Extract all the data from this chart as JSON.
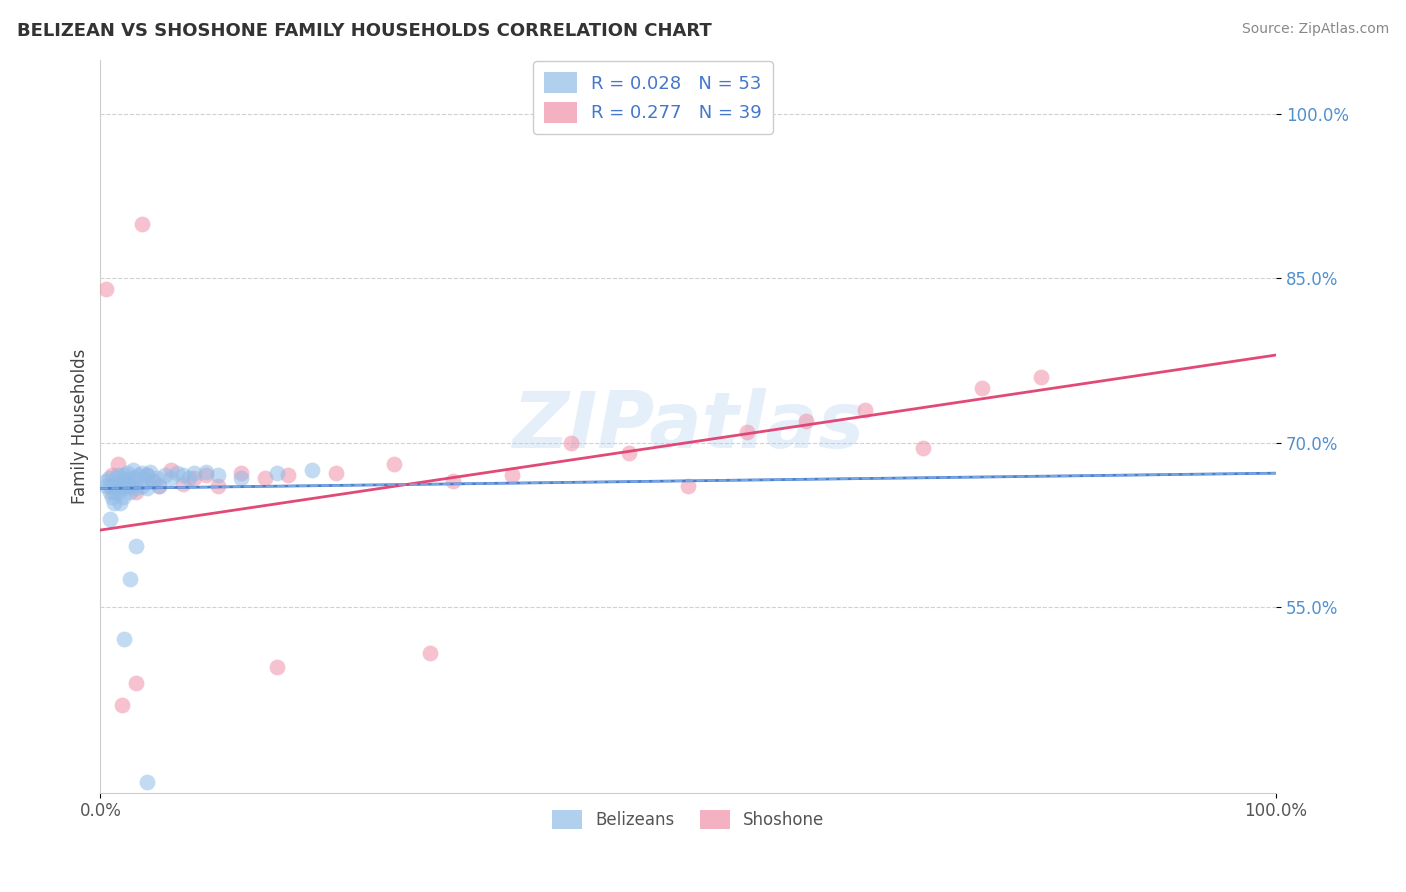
{
  "title": "BELIZEAN VS SHOSHONE FAMILY HOUSEHOLDS CORRELATION CHART",
  "source": "Source: ZipAtlas.com",
  "ylabel": "Family Households",
  "y_tick_labels": [
    "55.0%",
    "70.0%",
    "85.0%",
    "100.0%"
  ],
  "y_tick_values": [
    0.55,
    0.7,
    0.85,
    1.0
  ],
  "xlim": [
    0.0,
    1.0
  ],
  "ylim": [
    0.38,
    1.05
  ],
  "belizean_color": "#90bce8",
  "shoshone_color": "#f090a8",
  "belizean_alpha": 0.55,
  "shoshone_alpha": 0.55,
  "marker_size": 130,
  "trend_color_belizean": "#4477cc",
  "trend_color_shoshone": "#e04070",
  "watermark": "ZIPatlas",
  "legend_label_bel": "R = 0.028   N = 53",
  "legend_label_sho": "R = 0.277   N = 39",
  "legend_color_text": "#4477cc",
  "belizean_x": [
    0.005,
    0.005,
    0.007,
    0.008,
    0.008,
    0.01,
    0.01,
    0.012,
    0.012,
    0.013,
    0.015,
    0.015,
    0.015,
    0.017,
    0.018,
    0.018,
    0.019,
    0.02,
    0.02,
    0.022,
    0.022,
    0.023,
    0.025,
    0.025,
    0.027,
    0.028,
    0.03,
    0.03,
    0.032,
    0.035,
    0.035,
    0.038,
    0.04,
    0.04,
    0.042,
    0.045,
    0.048,
    0.05,
    0.055,
    0.06,
    0.065,
    0.07,
    0.075,
    0.08,
    0.09,
    0.1,
    0.12,
    0.15,
    0.18,
    0.02,
    0.025,
    0.03,
    0.04
  ],
  "belizean_y": [
    0.66,
    0.665,
    0.668,
    0.63,
    0.655,
    0.65,
    0.662,
    0.645,
    0.66,
    0.668,
    0.655,
    0.66,
    0.67,
    0.645,
    0.66,
    0.668,
    0.65,
    0.658,
    0.67,
    0.66,
    0.665,
    0.672,
    0.655,
    0.665,
    0.66,
    0.675,
    0.658,
    0.668,
    0.67,
    0.66,
    0.672,
    0.668,
    0.658,
    0.67,
    0.673,
    0.665,
    0.668,
    0.66,
    0.67,
    0.668,
    0.672,
    0.67,
    0.668,
    0.672,
    0.673,
    0.67,
    0.668,
    0.672,
    0.675,
    0.52,
    0.575,
    0.605,
    0.39
  ],
  "shoshone_x": [
    0.005,
    0.008,
    0.01,
    0.012,
    0.015,
    0.018,
    0.02,
    0.025,
    0.028,
    0.03,
    0.035,
    0.04,
    0.045,
    0.05,
    0.06,
    0.07,
    0.08,
    0.09,
    0.1,
    0.12,
    0.14,
    0.16,
    0.2,
    0.25,
    0.3,
    0.35,
    0.4,
    0.45,
    0.5,
    0.55,
    0.6,
    0.65,
    0.7,
    0.75,
    0.8,
    0.018,
    0.03,
    0.15,
    0.28
  ],
  "shoshone_y": [
    0.84,
    0.66,
    0.67,
    0.655,
    0.68,
    0.66,
    0.665,
    0.66,
    0.668,
    0.655,
    0.9,
    0.67,
    0.665,
    0.66,
    0.675,
    0.662,
    0.668,
    0.67,
    0.66,
    0.672,
    0.668,
    0.67,
    0.672,
    0.68,
    0.665,
    0.67,
    0.7,
    0.69,
    0.66,
    0.71,
    0.72,
    0.73,
    0.695,
    0.75,
    0.76,
    0.46,
    0.48,
    0.495,
    0.508
  ]
}
